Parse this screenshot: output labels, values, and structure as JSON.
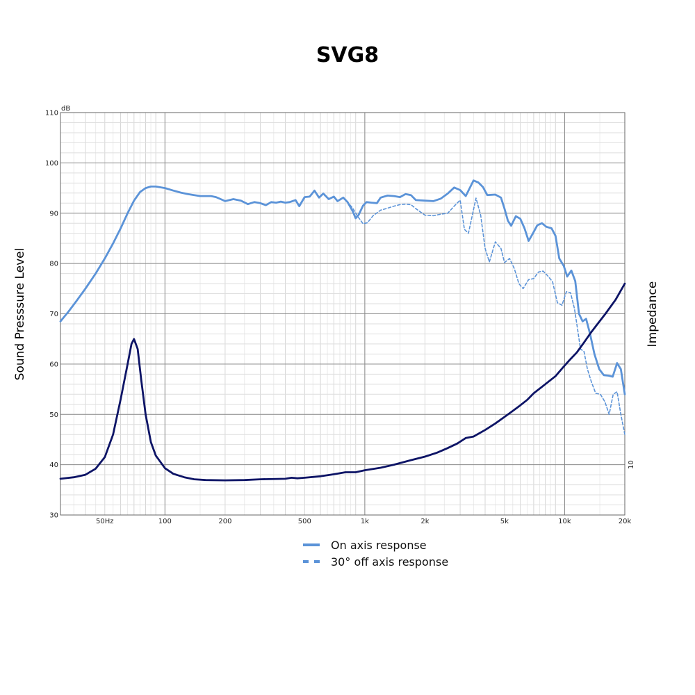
{
  "chart_data": {
    "type": "line",
    "title": "SVG8",
    "ylabel": "Sound Presssure Level",
    "y2label": "Impedance",
    "yunit": "dB",
    "x_scale": "log",
    "xlim": [
      30,
      20000
    ],
    "ylim": [
      30,
      110
    ],
    "grid": true,
    "legend_position": "bottom-center",
    "x_ticks": [
      {
        "value": 50,
        "label": "50Hz"
      },
      {
        "value": 100,
        "label": "100"
      },
      {
        "value": 200,
        "label": "200"
      },
      {
        "value": 500,
        "label": "500"
      },
      {
        "value": 1000,
        "label": "1k"
      },
      {
        "value": 2000,
        "label": "2k"
      },
      {
        "value": 5000,
        "label": "5k"
      },
      {
        "value": 10000,
        "label": "10k"
      },
      {
        "value": 20000,
        "label": "20k"
      }
    ],
    "y_ticks": [
      30,
      40,
      50,
      60,
      70,
      80,
      90,
      100,
      110
    ],
    "y2_ticks": [
      {
        "value": 40,
        "label": "10"
      }
    ],
    "series": [
      {
        "name": "On axis response",
        "style": "solid",
        "color": "#5b93d8",
        "points": [
          [
            30,
            68.5
          ],
          [
            33,
            70.5
          ],
          [
            36,
            72.5
          ],
          [
            40,
            75
          ],
          [
            45,
            78
          ],
          [
            50,
            81
          ],
          [
            55,
            84
          ],
          [
            60,
            87
          ],
          [
            65,
            90
          ],
          [
            70,
            92.5
          ],
          [
            75,
            94.2
          ],
          [
            80,
            95
          ],
          [
            85,
            95.3
          ],
          [
            90,
            95.3
          ],
          [
            100,
            95
          ],
          [
            110,
            94.5
          ],
          [
            120,
            94.1
          ],
          [
            130,
            93.8
          ],
          [
            140,
            93.6
          ],
          [
            150,
            93.4
          ],
          [
            170,
            93.4
          ],
          [
            180,
            93.2
          ],
          [
            190,
            92.8
          ],
          [
            200,
            92.4
          ],
          [
            220,
            92.8
          ],
          [
            240,
            92.5
          ],
          [
            260,
            91.8
          ],
          [
            280,
            92.2
          ],
          [
            300,
            92
          ],
          [
            320,
            91.6
          ],
          [
            340,
            92.2
          ],
          [
            360,
            92.1
          ],
          [
            380,
            92.3
          ],
          [
            400,
            92.1
          ],
          [
            420,
            92.2
          ],
          [
            450,
            92.6
          ],
          [
            470,
            91.4
          ],
          [
            500,
            93.2
          ],
          [
            530,
            93.3
          ],
          [
            560,
            94.5
          ],
          [
            590,
            93.1
          ],
          [
            620,
            93.9
          ],
          [
            660,
            92.8
          ],
          [
            700,
            93.3
          ],
          [
            730,
            92.4
          ],
          [
            780,
            93.1
          ],
          [
            820,
            92.2
          ],
          [
            870,
            90.4
          ],
          [
            900,
            89
          ],
          [
            930,
            89.6
          ],
          [
            980,
            91.5
          ],
          [
            1020,
            92.2
          ],
          [
            1080,
            92.1
          ],
          [
            1150,
            92
          ],
          [
            1200,
            93.1
          ],
          [
            1300,
            93.5
          ],
          [
            1400,
            93.4
          ],
          [
            1500,
            93.2
          ],
          [
            1600,
            93.8
          ],
          [
            1700,
            93.6
          ],
          [
            1800,
            92.6
          ],
          [
            2000,
            92.5
          ],
          [
            2200,
            92.4
          ],
          [
            2400,
            92.9
          ],
          [
            2600,
            93.9
          ],
          [
            2800,
            95.1
          ],
          [
            3000,
            94.6
          ],
          [
            3200,
            93.4
          ],
          [
            3500,
            96.5
          ],
          [
            3700,
            96.1
          ],
          [
            3900,
            95.2
          ],
          [
            4100,
            93.6
          ],
          [
            4500,
            93.7
          ],
          [
            4800,
            93.1
          ],
          [
            5000,
            90.9
          ],
          [
            5200,
            88.5
          ],
          [
            5400,
            87.5
          ],
          [
            5700,
            89.4
          ],
          [
            6000,
            88.9
          ],
          [
            6300,
            87
          ],
          [
            6600,
            84.5
          ],
          [
            6900,
            85.8
          ],
          [
            7300,
            87.6
          ],
          [
            7700,
            88
          ],
          [
            8100,
            87.3
          ],
          [
            8600,
            87
          ],
          [
            9000,
            85.5
          ],
          [
            9400,
            81
          ],
          [
            9900,
            79.5
          ],
          [
            10300,
            77.4
          ],
          [
            10800,
            78.6
          ],
          [
            11300,
            76.5
          ],
          [
            11800,
            70
          ],
          [
            12300,
            68.5
          ],
          [
            12800,
            69
          ],
          [
            13400,
            66
          ],
          [
            14100,
            62
          ],
          [
            14900,
            59
          ],
          [
            15700,
            57.8
          ],
          [
            16600,
            57.7
          ],
          [
            17400,
            57.5
          ],
          [
            18300,
            60.2
          ],
          [
            19100,
            59
          ],
          [
            20000,
            54
          ]
        ]
      },
      {
        "name": "30° off axis response",
        "style": "dashed",
        "color": "#5b93d8",
        "points": [
          [
            780,
            93
          ],
          [
            820,
            92.2
          ],
          [
            870,
            91
          ],
          [
            920,
            89.4
          ],
          [
            980,
            87.9
          ],
          [
            1030,
            88.1
          ],
          [
            1100,
            89.5
          ],
          [
            1200,
            90.6
          ],
          [
            1300,
            91
          ],
          [
            1400,
            91.4
          ],
          [
            1500,
            91.7
          ],
          [
            1600,
            91.8
          ],
          [
            1700,
            91.7
          ],
          [
            1800,
            90.9
          ],
          [
            2000,
            89.6
          ],
          [
            2200,
            89.5
          ],
          [
            2400,
            89.8
          ],
          [
            2600,
            90
          ],
          [
            2800,
            91.4
          ],
          [
            3000,
            92.6
          ],
          [
            3150,
            86.8
          ],
          [
            3300,
            86
          ],
          [
            3600,
            93
          ],
          [
            3800,
            89.6
          ],
          [
            4000,
            83
          ],
          [
            4200,
            80.3
          ],
          [
            4500,
            84.3
          ],
          [
            4800,
            83
          ],
          [
            5000,
            80.2
          ],
          [
            5300,
            81
          ],
          [
            5600,
            79
          ],
          [
            5900,
            76
          ],
          [
            6200,
            75
          ],
          [
            6600,
            76.8
          ],
          [
            7000,
            77
          ],
          [
            7400,
            78.3
          ],
          [
            7800,
            78.5
          ],
          [
            8200,
            77.6
          ],
          [
            8700,
            76.4
          ],
          [
            9200,
            72.2
          ],
          [
            9700,
            71.7
          ],
          [
            10200,
            74.4
          ],
          [
            10700,
            74.2
          ],
          [
            11200,
            71
          ],
          [
            11600,
            67
          ],
          [
            12000,
            63
          ],
          [
            12500,
            62.5
          ],
          [
            13000,
            59
          ],
          [
            13600,
            56.5
          ],
          [
            14300,
            54.2
          ],
          [
            15100,
            54
          ],
          [
            15900,
            52.5
          ],
          [
            16700,
            50
          ],
          [
            17500,
            54
          ],
          [
            18300,
            54.5
          ],
          [
            19100,
            50
          ],
          [
            20000,
            46
          ]
        ]
      },
      {
        "name": "Impedance",
        "style": "solid",
        "color": "#0d1466",
        "points": [
          [
            30,
            37.2
          ],
          [
            35,
            37.5
          ],
          [
            40,
            38
          ],
          [
            45,
            39.2
          ],
          [
            50,
            41.5
          ],
          [
            55,
            46
          ],
          [
            60,
            53
          ],
          [
            65,
            60
          ],
          [
            68,
            64
          ],
          [
            70,
            65
          ],
          [
            73,
            63
          ],
          [
            76,
            57
          ],
          [
            80,
            50
          ],
          [
            85,
            44.5
          ],
          [
            90,
            41.8
          ],
          [
            100,
            39.3
          ],
          [
            110,
            38.2
          ],
          [
            125,
            37.5
          ],
          [
            140,
            37.1
          ],
          [
            160,
            36.95
          ],
          [
            200,
            36.9
          ],
          [
            250,
            36.95
          ],
          [
            300,
            37.1
          ],
          [
            400,
            37.2
          ],
          [
            430,
            37.4
          ],
          [
            460,
            37.3
          ],
          [
            500,
            37.4
          ],
          [
            600,
            37.7
          ],
          [
            700,
            38.1
          ],
          [
            800,
            38.5
          ],
          [
            900,
            38.5
          ],
          [
            1000,
            38.9
          ],
          [
            1200,
            39.4
          ],
          [
            1400,
            40
          ],
          [
            1700,
            40.9
          ],
          [
            2000,
            41.6
          ],
          [
            2300,
            42.4
          ],
          [
            2600,
            43.3
          ],
          [
            2900,
            44.2
          ],
          [
            3200,
            45.3
          ],
          [
            3500,
            45.6
          ],
          [
            4000,
            46.9
          ],
          [
            4500,
            48.2
          ],
          [
            5000,
            49.5
          ],
          [
            5500,
            50.7
          ],
          [
            6000,
            51.8
          ],
          [
            6500,
            52.9
          ],
          [
            7000,
            54.2
          ],
          [
            8000,
            56
          ],
          [
            9000,
            57.6
          ],
          [
            10000,
            59.7
          ],
          [
            10700,
            61
          ],
          [
            11500,
            62.3
          ],
          [
            12500,
            64.3
          ],
          [
            13500,
            66.2
          ],
          [
            14500,
            67.8
          ],
          [
            16000,
            70
          ],
          [
            18000,
            72.8
          ],
          [
            20000,
            76
          ]
        ]
      }
    ]
  }
}
